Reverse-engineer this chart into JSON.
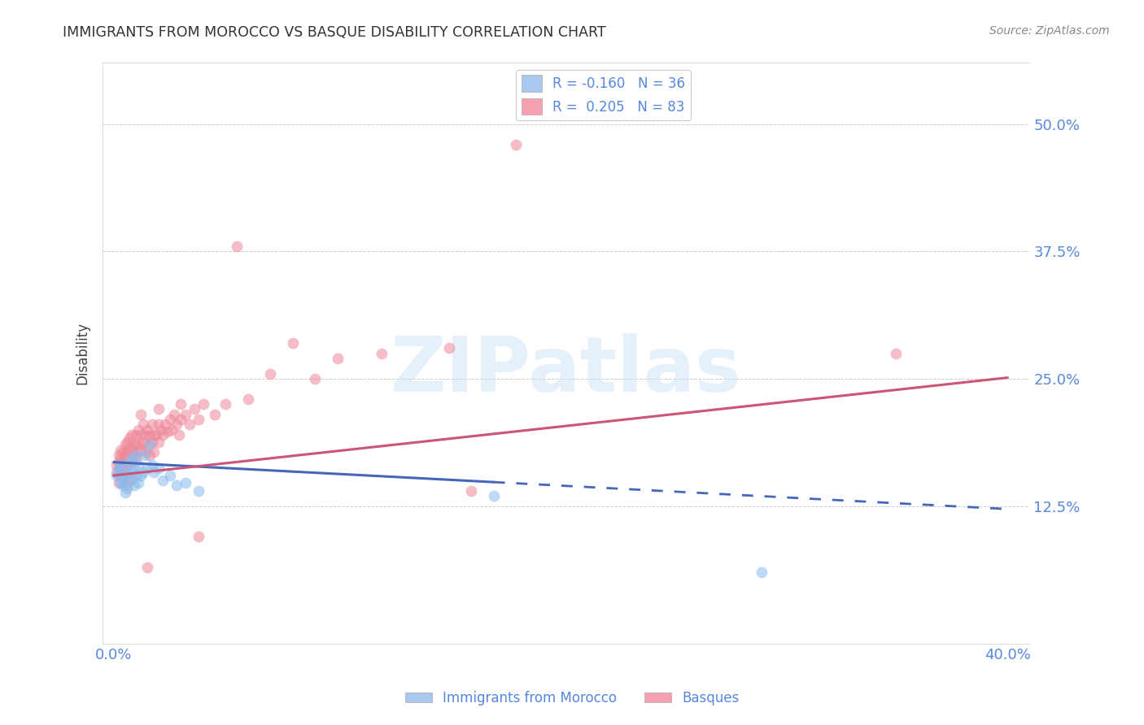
{
  "title": "IMMIGRANTS FROM MOROCCO VS BASQUE DISABILITY CORRELATION CHART",
  "source": "Source: ZipAtlas.com",
  "ylabel": "Disability",
  "ytick_labels": [
    "50.0%",
    "37.5%",
    "25.0%",
    "12.5%"
  ],
  "ytick_vals": [
    0.5,
    0.375,
    0.25,
    0.125
  ],
  "legend_entries": [
    {
      "label": "R = -0.160   N = 36",
      "color": "#a8c8f0"
    },
    {
      "label": "R =  0.205   N = 83",
      "color": "#f4a0b0"
    }
  ],
  "legend_label_bottom_left": "Immigrants from Morocco",
  "legend_label_bottom_right": "Basques",
  "bg_color": "#ffffff",
  "plot_bg_color": "#ffffff",
  "grid_color": "#cccccc",
  "title_color": "#333333",
  "axis_label_color": "#5588dd",
  "ytick_color": "#5588dd",
  "blue_scatter_color": "#88bbee",
  "pink_scatter_color": "#ee8899",
  "blue_line_color": "#4466bb",
  "pink_line_color": "#cc5577",
  "blue_scatter_x": [
    0.001,
    0.002,
    0.002,
    0.003,
    0.003,
    0.004,
    0.004,
    0.005,
    0.005,
    0.006,
    0.006,
    0.007,
    0.007,
    0.008,
    0.008,
    0.009,
    0.009,
    0.01,
    0.01,
    0.011,
    0.011,
    0.012,
    0.013,
    0.014,
    0.015,
    0.016,
    0.017,
    0.018,
    0.02,
    0.022,
    0.025,
    0.028,
    0.032,
    0.038,
    0.17,
    0.29
  ],
  "blue_scatter_y": [
    0.155,
    0.158,
    0.162,
    0.148,
    0.165,
    0.152,
    0.145,
    0.16,
    0.138,
    0.155,
    0.142,
    0.168,
    0.15,
    0.172,
    0.158,
    0.145,
    0.162,
    0.155,
    0.175,
    0.148,
    0.165,
    0.155,
    0.158,
    0.175,
    0.162,
    0.185,
    0.165,
    0.158,
    0.162,
    0.15,
    0.155,
    0.145,
    0.148,
    0.14,
    0.135,
    0.06
  ],
  "pink_scatter_x": [
    0.001,
    0.001,
    0.002,
    0.002,
    0.002,
    0.003,
    0.003,
    0.003,
    0.004,
    0.004,
    0.004,
    0.005,
    0.005,
    0.005,
    0.006,
    0.006,
    0.006,
    0.007,
    0.007,
    0.008,
    0.008,
    0.008,
    0.009,
    0.009,
    0.01,
    0.01,
    0.01,
    0.011,
    0.011,
    0.012,
    0.012,
    0.013,
    0.013,
    0.014,
    0.014,
    0.015,
    0.015,
    0.016,
    0.016,
    0.017,
    0.017,
    0.018,
    0.018,
    0.019,
    0.02,
    0.02,
    0.021,
    0.022,
    0.023,
    0.024,
    0.025,
    0.026,
    0.027,
    0.028,
    0.029,
    0.03,
    0.032,
    0.034,
    0.036,
    0.038,
    0.04,
    0.045,
    0.05,
    0.06,
    0.07,
    0.08,
    0.09,
    0.1,
    0.12,
    0.15,
    0.16,
    0.012,
    0.02,
    0.03,
    0.002,
    0.004,
    0.006,
    0.008,
    0.038,
    0.35,
    0.18,
    0.055,
    0.015
  ],
  "pink_scatter_y": [
    0.165,
    0.158,
    0.175,
    0.168,
    0.155,
    0.18,
    0.172,
    0.162,
    0.178,
    0.168,
    0.155,
    0.185,
    0.175,
    0.162,
    0.188,
    0.178,
    0.165,
    0.192,
    0.182,
    0.178,
    0.195,
    0.168,
    0.185,
    0.175,
    0.195,
    0.185,
    0.172,
    0.2,
    0.185,
    0.195,
    0.18,
    0.205,
    0.188,
    0.195,
    0.178,
    0.2,
    0.185,
    0.195,
    0.175,
    0.205,
    0.188,
    0.195,
    0.178,
    0.195,
    0.205,
    0.188,
    0.2,
    0.195,
    0.205,
    0.198,
    0.21,
    0.2,
    0.215,
    0.205,
    0.195,
    0.21,
    0.215,
    0.205,
    0.22,
    0.21,
    0.225,
    0.215,
    0.225,
    0.23,
    0.255,
    0.285,
    0.25,
    0.27,
    0.275,
    0.28,
    0.14,
    0.215,
    0.22,
    0.225,
    0.148,
    0.155,
    0.145,
    0.152,
    0.095,
    0.275,
    0.48,
    0.38,
    0.065
  ],
  "blue_line_x0": 0.0,
  "blue_line_x_solid_end": 0.17,
  "blue_line_x1": 0.4,
  "blue_line_y_intercept": 0.168,
  "blue_line_slope": -0.115,
  "pink_line_x0": 0.0,
  "pink_line_x1": 0.4,
  "pink_line_y_intercept": 0.155,
  "pink_line_slope": 0.24,
  "xlim": [
    -0.005,
    0.41
  ],
  "ylim": [
    -0.01,
    0.56
  ],
  "xtick_positions": [
    0.0,
    0.4
  ],
  "xtick_labels": [
    "0.0%",
    "40.0%"
  ],
  "scatter_size": 100,
  "scatter_alpha": 0.55,
  "watermark_text": "ZIPatlas",
  "watermark_color": "#c8dff5",
  "watermark_alpha": 0.45,
  "watermark_fontsize": 68
}
